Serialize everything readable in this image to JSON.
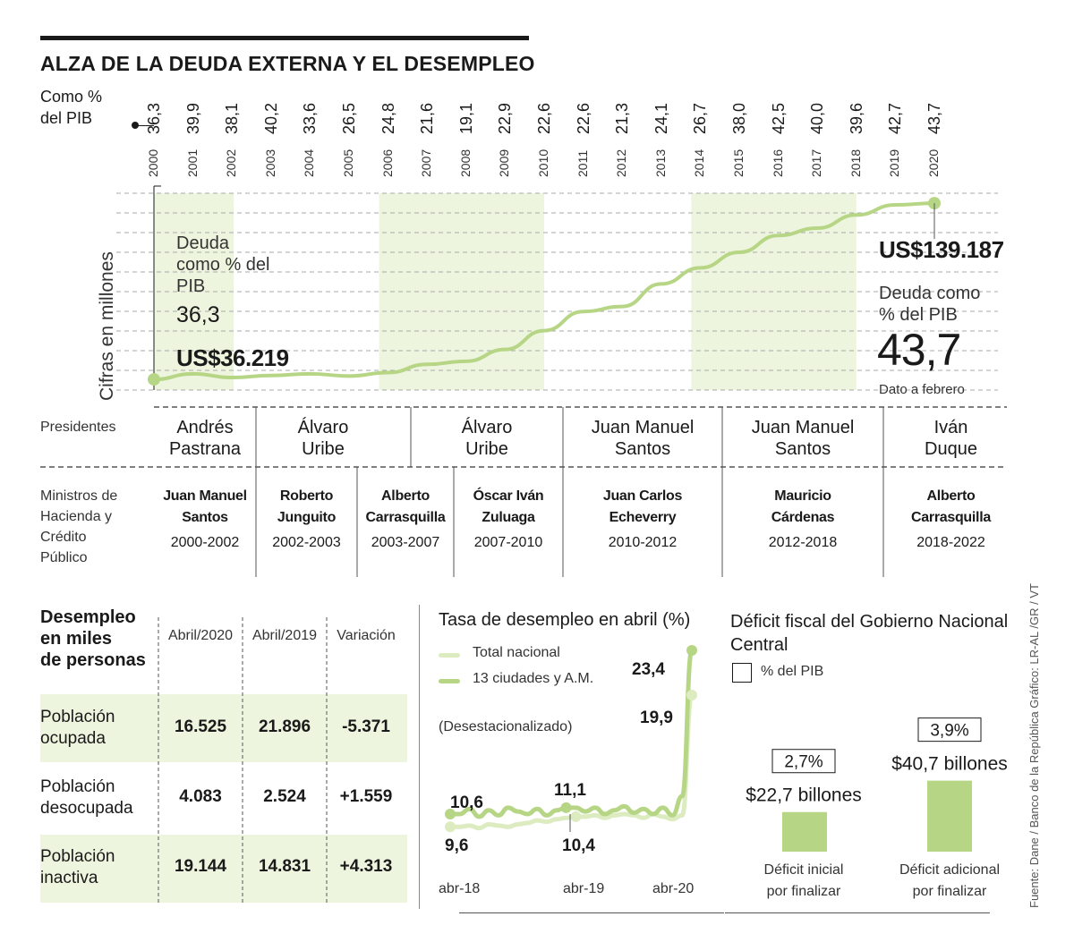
{
  "header": {
    "title": "ALZA DE LA DEUDA EXTERNA Y EL DESEMPLEO",
    "pct_label_line1": "Como %",
    "pct_label_line2": "del PIB"
  },
  "chart_data": [
    {
      "type": "line",
      "title": "Deuda externa",
      "ylabel": "Cifras en millones",
      "x": [
        "2000",
        "2001",
        "2002",
        "2003",
        "2004",
        "2005",
        "2006",
        "2007",
        "2008",
        "2009",
        "2010",
        "2011",
        "2012",
        "2013",
        "2014",
        "2015",
        "2016",
        "2017",
        "2018",
        "2019",
        "2020"
      ],
      "pct_pib": [
        "36,3",
        "39,9",
        "38,1",
        "40,2",
        "33,6",
        "26,5",
        "24,8",
        "21,6",
        "19,1",
        "22,9",
        "22,6",
        "22,6",
        "21,3",
        "24,1",
        "26,7",
        "38,0",
        "42,5",
        "40,0",
        "39,6",
        "42,7",
        "43,7"
      ],
      "values": [
        36219,
        39500,
        37300,
        38500,
        39500,
        38200,
        40200,
        45000,
        46800,
        53700,
        64700,
        75900,
        78800,
        92000,
        101400,
        110500,
        120300,
        124600,
        132300,
        138200,
        139187
      ],
      "ylim": [
        30000,
        145000
      ],
      "shaded_periods": [
        [
          "2000",
          "2002"
        ],
        [
          "2006",
          "2010"
        ],
        [
          "2014",
          "2018"
        ]
      ],
      "start_label": {
        "heading": "Deuda como % del PIB",
        "pct": "36,3",
        "value": "US$36.219"
      },
      "end_label": {
        "value": "US$139.187",
        "heading": "Deuda como % del PIB",
        "pct": "43,7",
        "note": "Dato a febrero"
      }
    },
    {
      "type": "line",
      "title": "Tasa de desempleo en abril (%)",
      "note": "(Desestacionalizado)",
      "x_labels": [
        "abr-18",
        "abr-19",
        "abr-20"
      ],
      "series": [
        {
          "name": "Total nacional",
          "color": "#dcecc0",
          "values": [
            9.6,
            9.6,
            9.7,
            9.5,
            9.8,
            9.7,
            9.6,
            9.8,
            9.9,
            10.1,
            10.0,
            10.2,
            10.3,
            10.4,
            10.4,
            10.5,
            10.3,
            10.5,
            10.6,
            10.5,
            10.3,
            10.6,
            10.4,
            10.2,
            10.5,
            19.9
          ]
        },
        {
          "name": "13 ciudades y A.M.",
          "color": "#b6d686",
          "values": [
            10.6,
            10.6,
            11.0,
            10.4,
            10.9,
            10.5,
            11.1,
            10.8,
            10.6,
            11.0,
            10.5,
            10.9,
            11.1,
            11.1,
            10.8,
            11.1,
            10.6,
            10.9,
            11.2,
            10.7,
            11.0,
            10.6,
            11.1,
            10.5,
            12.0,
            23.4
          ]
        }
      ],
      "labels": {
        "nat_start": "9,6",
        "city_start": "10,6",
        "city_mid": "11,1",
        "nat_mid": "10,4",
        "nat_end": "19,9",
        "city_end": "23,4"
      }
    },
    {
      "type": "bar",
      "title": "Déficit fiscal del Gobierno Nacional Central",
      "legend": "% del PIB",
      "categories": [
        "Déficit inicial por finalizar",
        "Déficit adicional por finalizar"
      ],
      "values": [
        22.7,
        40.7
      ],
      "value_labels": [
        "$22,7 billones",
        "$40,7 billones"
      ],
      "pct_labels": [
        "2,7%",
        "3,9%"
      ]
    }
  ],
  "presidents_label": "Presidentes",
  "presidents": [
    {
      "l1": "Andrés",
      "l2": "Pastrana"
    },
    {
      "l1": "Álvaro",
      "l2": "Uribe"
    },
    {
      "l1": "Álvaro",
      "l2": "Uribe"
    },
    {
      "l1": "Juan Manuel",
      "l2": "Santos"
    },
    {
      "l1": "Juan Manuel",
      "l2": "Santos"
    },
    {
      "l1": "Iván",
      "l2": "Duque"
    }
  ],
  "ministers_label": [
    "Ministros de",
    "Hacienda y",
    "Crédito",
    "Público"
  ],
  "ministers": [
    {
      "l1": "Juan Manuel",
      "l2": "Santos",
      "period": "2000-2002"
    },
    {
      "l1": "Roberto",
      "l2": "Junguito",
      "period": "2002-2003"
    },
    {
      "l1": "Alberto",
      "l2": "Carrasquilla",
      "period": "2003-2007"
    },
    {
      "l1": "Óscar Iván",
      "l2": "Zuluaga",
      "period": "2007-2010"
    },
    {
      "l1": "Juan Carlos",
      "l2": "Echeverry",
      "period": "2010-2012"
    },
    {
      "l1": "Mauricio",
      "l2": "Cárdenas",
      "period": "2012-2018"
    },
    {
      "l1": "Alberto",
      "l2": "Carrasquilla",
      "period": "2018-2022"
    }
  ],
  "unemployment_table": {
    "title": [
      "Desempleo",
      "en miles",
      "de personas"
    ],
    "headers": [
      "Abril/2020",
      "Abril/2019",
      "Variación"
    ],
    "rows": [
      {
        "l1": "Población",
        "l2": "ocupada",
        "v": [
          "16.525",
          "21.896",
          "-5.371"
        ]
      },
      {
        "l1": "Población",
        "l2": "desocupada",
        "v": [
          "4.083",
          "2.524",
          "+1.559"
        ]
      },
      {
        "l1": "Población",
        "l2": "inactiva",
        "v": [
          "19.144",
          "14.831",
          "+4.313"
        ]
      }
    ]
  },
  "credit": "Fuente: Dane / Banco de la República Gráfico: LR-AL /GR / VT",
  "colors": {
    "accent": "#b6d686",
    "accent_light": "#dcecc0",
    "band": "#eef5de"
  }
}
